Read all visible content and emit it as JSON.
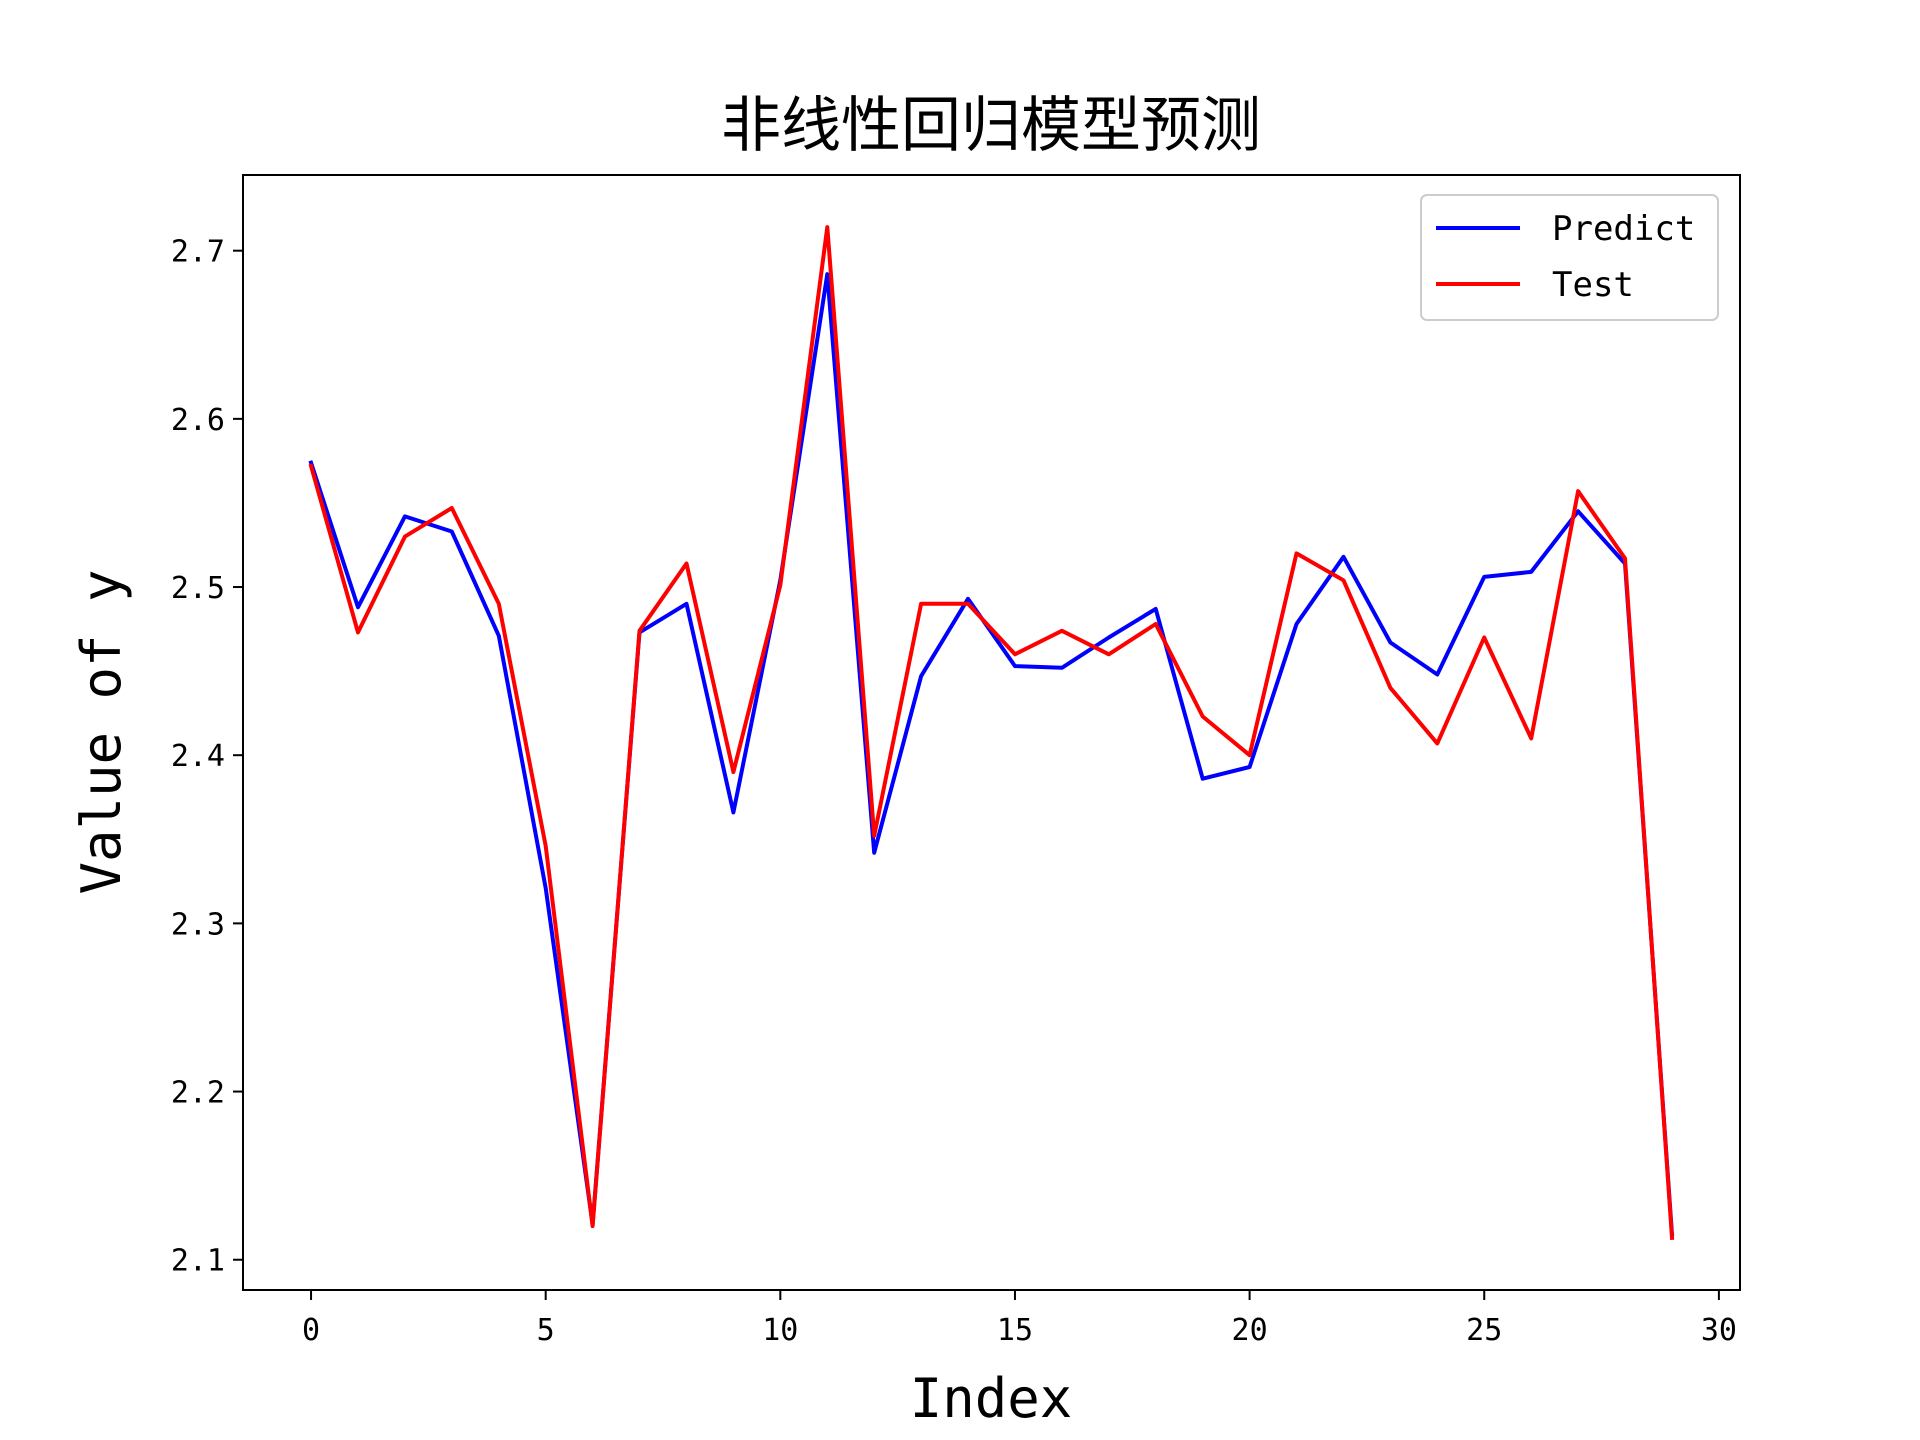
{
  "chart_data": {
    "type": "line",
    "title": "非线性回归模型预测",
    "xlabel": "Index",
    "ylabel": "Value of y",
    "xlim": [
      -1.45,
      30.45
    ],
    "ylim": [
      2.082,
      2.745
    ],
    "xticks": [
      0,
      5,
      10,
      15,
      20,
      25,
      30
    ],
    "yticks": [
      2.1,
      2.2,
      2.3,
      2.4,
      2.5,
      2.6,
      2.7
    ],
    "xtick_labels": [
      "0",
      "5",
      "10",
      "15",
      "20",
      "25",
      "30"
    ],
    "ytick_labels": [
      "2.1",
      "2.2",
      "2.3",
      "2.4",
      "2.5",
      "2.6",
      "2.7"
    ],
    "grid": false,
    "legend_position": "top-right",
    "x": [
      0,
      1,
      2,
      3,
      4,
      5,
      6,
      7,
      8,
      9,
      10,
      11,
      12,
      13,
      14,
      15,
      16,
      17,
      18,
      19,
      20,
      21,
      22,
      23,
      24,
      25,
      26,
      27,
      28,
      29
    ],
    "series": [
      {
        "name": "Predict",
        "color": "#0000ff",
        "values": [
          2.574,
          2.488,
          2.542,
          2.533,
          2.471,
          2.321,
          2.121,
          2.473,
          2.49,
          2.366,
          2.504,
          2.686,
          2.342,
          2.447,
          2.493,
          2.453,
          2.452,
          2.47,
          2.487,
          2.386,
          2.393,
          2.478,
          2.518,
          2.467,
          2.448,
          2.506,
          2.509,
          2.545,
          2.514,
          2.115
        ]
      },
      {
        "name": "Test",
        "color": "#ff0000",
        "values": [
          2.572,
          2.473,
          2.53,
          2.547,
          2.49,
          2.346,
          2.12,
          2.474,
          2.514,
          2.39,
          2.501,
          2.714,
          2.352,
          2.49,
          2.49,
          2.46,
          2.474,
          2.46,
          2.478,
          2.423,
          2.4,
          2.52,
          2.504,
          2.44,
          2.407,
          2.47,
          2.41,
          2.557,
          2.517,
          2.113
        ]
      }
    ]
  }
}
